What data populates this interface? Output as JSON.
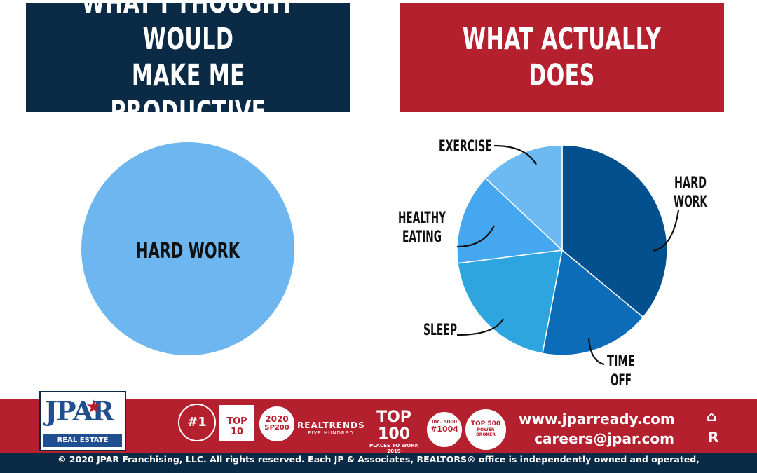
{
  "headers": {
    "left": "WHAT I THOUGHT WOULD\nMAKE ME PRODUCTIVE",
    "right": "WHAT ACTUALLY DOES"
  },
  "colors": {
    "navy": "#0b2a45",
    "red": "#b5202e",
    "left_pie": "#6db6f0",
    "slices": [
      "#03508e",
      "#0c6cb8",
      "#2ea5df",
      "#44a7ef",
      "#6db9f1"
    ]
  },
  "chart_data": [
    {
      "type": "pie",
      "title": "WHAT I THOUGHT WOULD MAKE ME PRODUCTIVE",
      "categories": [
        "HARD WORK"
      ],
      "values": [
        100
      ]
    },
    {
      "type": "pie",
      "title": "WHAT ACTUALLY DOES",
      "categories": [
        "HARD WORK",
        "TIME OFF",
        "SLEEP",
        "HEALTHY EATING",
        "EXERCISE"
      ],
      "values": [
        36,
        17,
        20,
        14,
        13
      ]
    }
  ],
  "labels": {
    "left_center": "HARD WORK",
    "hard_work": [
      "HARD",
      "WORK"
    ],
    "time_off": [
      "TIME",
      "OFF"
    ],
    "sleep": [
      "SLEEP"
    ],
    "healthy_eating": [
      "HEALTHY",
      "EATING"
    ],
    "exercise": [
      "EXERCISE"
    ]
  },
  "footer": {
    "logo_text": "JPAR",
    "logo_sub": "REAL ESTATE",
    "awards": {
      "top10": "TOP 10",
      "sp200_year": "2020",
      "sp200": "SP200",
      "realtrends": "REALTRENDS",
      "realtrends_sub": "FIVE HUNDRED",
      "top100": "TOP 100",
      "top100_sub": "PLACES TO WORK 2019",
      "inc_rank": "#1004",
      "inc_label": "Inc. 5000",
      "top500": "TOP 500",
      "top500_sub": "POWER BROKER"
    },
    "website": "www.jparready.com",
    "email": "careers@jpar.com",
    "copyright": "© 2020 JPAR Franchising, LLC. All rights reserved. Each JP & Associates, REALTORS® office is independently owned and operated,"
  }
}
